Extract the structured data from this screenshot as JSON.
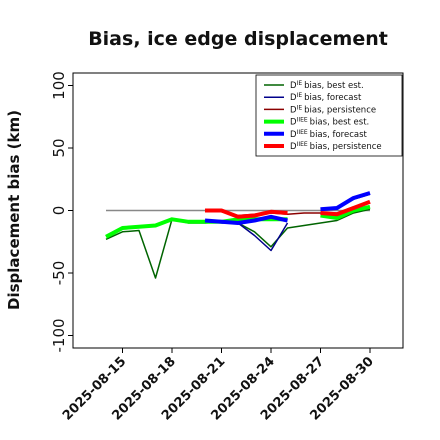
{
  "chart_data": {
    "type": "line",
    "title": "Bias, ice edge displacement",
    "y_label": "Displacement bias (km)",
    "x": [
      "2025-08-14",
      "2025-08-15",
      "2025-08-16",
      "2025-08-17",
      "2025-08-18",
      "2025-08-19",
      "2025-08-20",
      "2025-08-21",
      "2025-08-22",
      "2025-08-23",
      "2025-08-24",
      "2025-08-25",
      "2025-08-26",
      "2025-08-27",
      "2025-08-28",
      "2025-08-29",
      "2025-08-30"
    ],
    "xlim": [
      "2025-08-12",
      "2025-09-01"
    ],
    "xticks": [
      "2025-08-15",
      "2025-08-18",
      "2025-08-21",
      "2025-08-24",
      "2025-08-27",
      "2025-08-30"
    ],
    "xtick_colors": [
      "#111111",
      "#111111",
      "#228b22",
      "#111111",
      "#111111",
      "#111111"
    ],
    "ylim": [
      -110,
      110
    ],
    "yticks": [
      -100,
      -50,
      0,
      50,
      100
    ],
    "hline": {
      "y": 0,
      "xmin": "2025-08-14",
      "xmax": "2025-08-30",
      "color": "#888888"
    },
    "series": [
      {
        "symbol": "D",
        "superscript": "IE",
        "name": "bias, best est.",
        "color": "#006400",
        "width": 1.5,
        "values": [
          -23,
          -17,
          -16,
          -54,
          -7,
          -10,
          -10,
          -9,
          -10,
          -17,
          -29,
          -14,
          -12,
          -10,
          -8,
          -2,
          1
        ]
      },
      {
        "symbol": "D",
        "superscript": "IE",
        "name": "bias, forecast",
        "color": "#00008b",
        "width": 1.5,
        "values": [
          null,
          null,
          null,
          null,
          null,
          null,
          null,
          -10,
          -10,
          -20,
          -32,
          -10,
          null,
          1,
          2,
          9,
          13
        ]
      },
      {
        "symbol": "D",
        "superscript": "IE",
        "name": "bias, persistence",
        "color": "#8b0000",
        "width": 1.5,
        "values": [
          null,
          null,
          null,
          null,
          null,
          null,
          0,
          -1,
          -4,
          -3,
          -2,
          -3,
          -2,
          -2,
          -2,
          3,
          6
        ]
      },
      {
        "symbol": "D",
        "superscript": "IIEE",
        "name": "bias, best est.",
        "color": "#00ff00",
        "width": 4,
        "values": [
          -21,
          -14,
          -13,
          -12,
          -7,
          -9,
          -9,
          -9,
          -7,
          -7,
          -7,
          -7,
          null,
          -4,
          -6,
          0,
          3
        ]
      },
      {
        "symbol": "D",
        "superscript": "IIEE",
        "name": "bias, forecast",
        "color": "#0000ff",
        "width": 4,
        "values": [
          null,
          null,
          null,
          null,
          null,
          null,
          -8,
          -9,
          -10,
          -8,
          -5,
          -8,
          null,
          1,
          2,
          10,
          14
        ]
      },
      {
        "symbol": "D",
        "superscript": "IIEE",
        "name": "bias, persistence",
        "color": "#ff0000",
        "width": 4,
        "values": [
          null,
          null,
          null,
          null,
          null,
          null,
          0,
          0,
          -5,
          -4,
          -1,
          -2,
          null,
          -2,
          -3,
          2,
          7
        ]
      }
    ],
    "legend": "upper right"
  }
}
